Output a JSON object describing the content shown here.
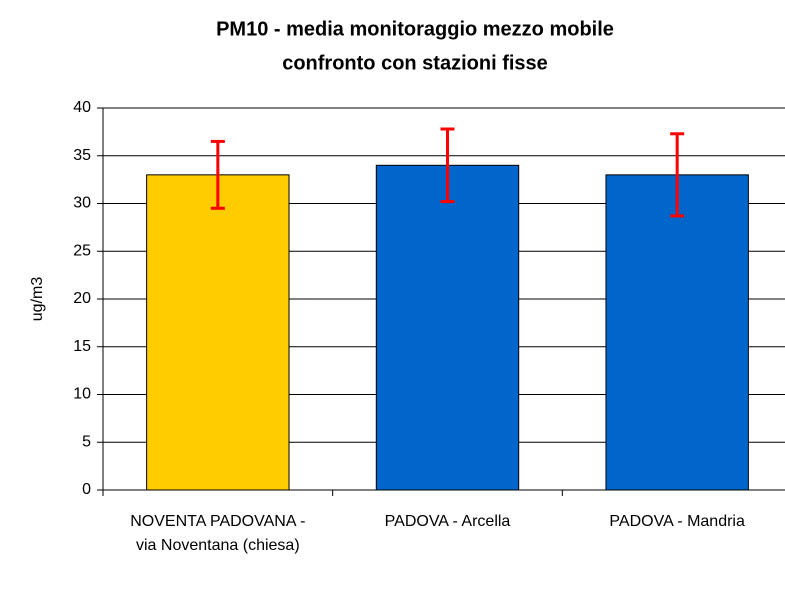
{
  "chart_data": {
    "type": "bar",
    "title": [
      "PM10 - media monitoraggio mezzo mobile",
      "confronto con stazioni fisse"
    ],
    "y_label": "ug/m3",
    "categories": [
      "NOVENTA PADOVANA - via Noventana (chiesa)",
      "PADOVA - Arcella",
      "PADOVA - Mandria"
    ],
    "values": [
      33,
      34,
      33
    ],
    "errors": [
      3.5,
      3.8,
      4.3
    ],
    "colors": [
      "#ffcc00",
      "#0066cc",
      "#0066cc"
    ],
    "error_color": "#ff0000",
    "ylim": [
      0,
      40
    ],
    "yticks": [
      0,
      5,
      10,
      15,
      20,
      25,
      30,
      35,
      40
    ],
    "grid": true
  }
}
